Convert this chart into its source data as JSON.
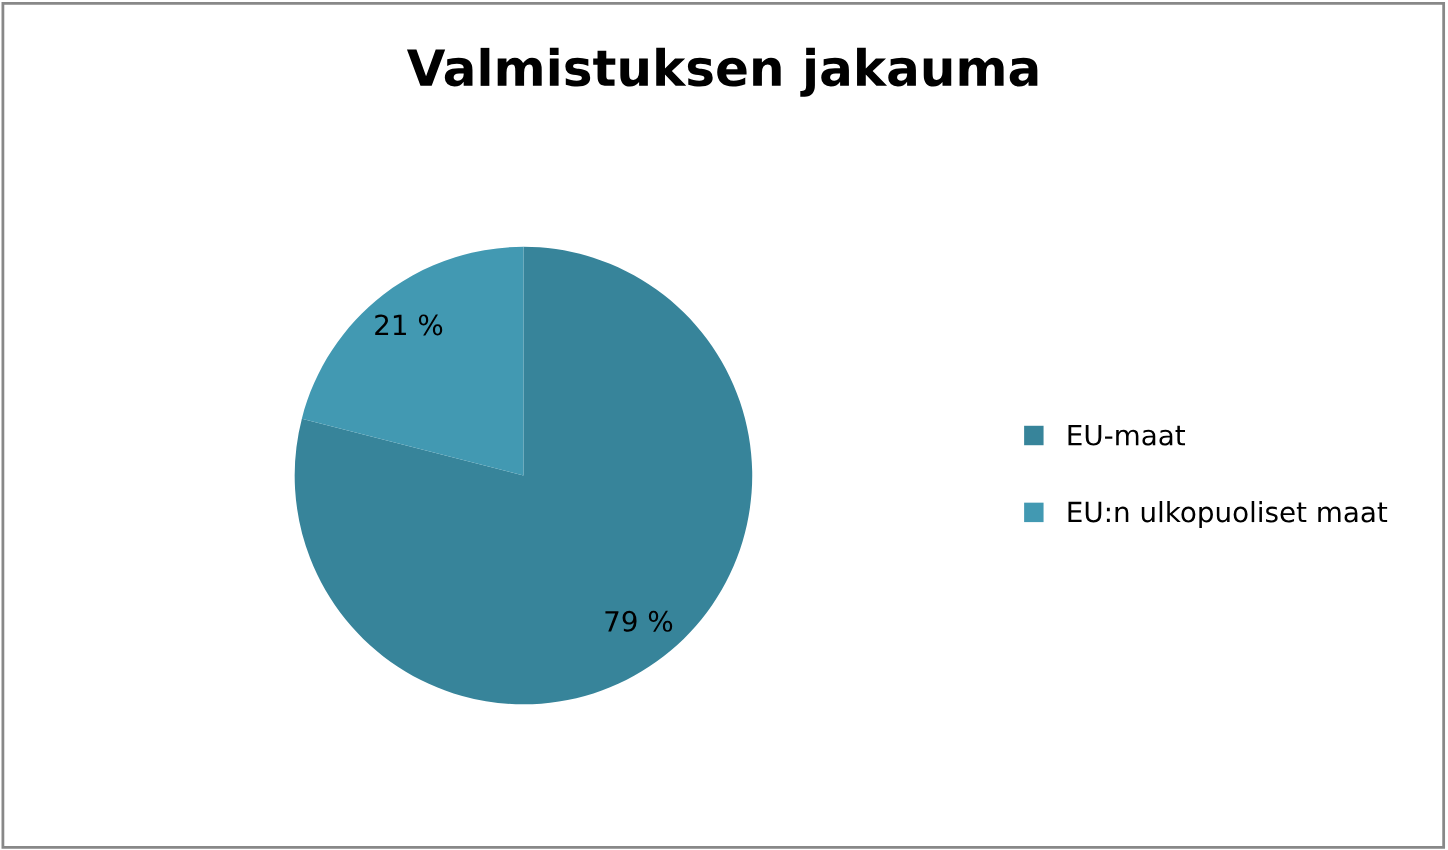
{
  "chart_data": {
    "type": "pie",
    "title": "Valmistuksen jakauma",
    "categories": [
      "EU-maat",
      "EU:n ulkopuoliset maat"
    ],
    "values": [
      79,
      21
    ],
    "colors": [
      "#37849a",
      "#4299b2"
    ],
    "value_labels": [
      "79 %",
      "21 %"
    ],
    "legend": "right"
  }
}
